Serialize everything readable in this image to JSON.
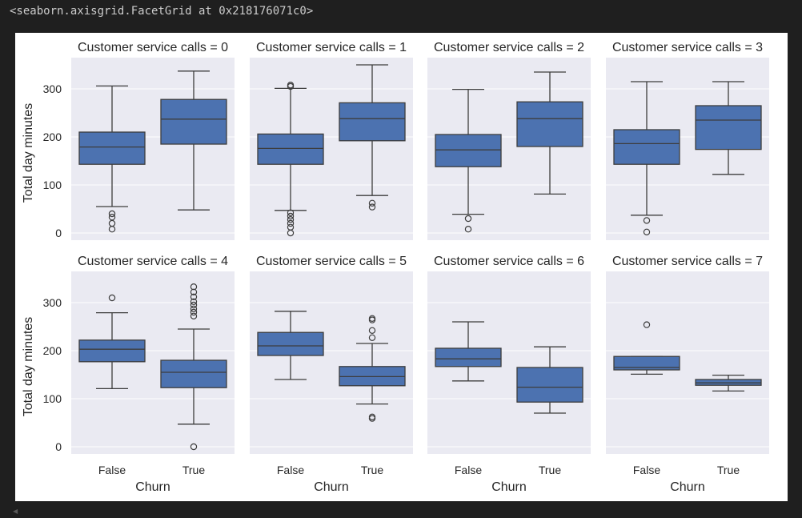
{
  "output_header": "<seaborn.axisgrid.FacetGrid at 0x218176071c0>",
  "scroll_arrow_icon": "triangle-left",
  "colors": {
    "page_bg": "#1f1f1f",
    "figure_bg": "#ffffff",
    "axes_bg": "#eaeaf2",
    "grid": "#ffffff",
    "box_fill": "#4c72b0",
    "line": "#3d3d3d",
    "text": "#262626"
  },
  "chart_data": {
    "type": "box",
    "ylabel": "Total day minutes",
    "xlabel": "Churn",
    "ylim": [
      -15,
      365
    ],
    "yticks": [
      0,
      100,
      200,
      300
    ],
    "categories": [
      "False",
      "True"
    ],
    "grid": true,
    "facets": [
      {
        "title": "Customer service calls = 0",
        "boxes": [
          {
            "category": "False",
            "whisker_low": 55,
            "q1": 143,
            "median": 179,
            "q3": 210,
            "whisker_high": 306,
            "outliers": [
              8,
              20,
              33,
              40
            ]
          },
          {
            "category": "True",
            "whisker_low": 48,
            "q1": 185,
            "median": 237,
            "q3": 278,
            "whisker_high": 337,
            "outliers": []
          }
        ]
      },
      {
        "title": "Customer service calls = 1",
        "boxes": [
          {
            "category": "False",
            "whisker_low": 47,
            "q1": 143,
            "median": 176,
            "q3": 206,
            "whisker_high": 301,
            "outliers": [
              0,
              12,
              20,
              28,
              35,
              42,
              305,
              308
            ]
          },
          {
            "category": "True",
            "whisker_low": 78,
            "q1": 192,
            "median": 238,
            "q3": 271,
            "whisker_high": 350,
            "outliers": [
              54,
              62
            ]
          }
        ]
      },
      {
        "title": "Customer service calls = 2",
        "boxes": [
          {
            "category": "False",
            "whisker_low": 39,
            "q1": 138,
            "median": 173,
            "q3": 205,
            "whisker_high": 299,
            "outliers": [
              8,
              30
            ]
          },
          {
            "category": "True",
            "whisker_low": 81,
            "q1": 180,
            "median": 238,
            "q3": 273,
            "whisker_high": 335,
            "outliers": []
          }
        ]
      },
      {
        "title": "Customer service calls = 3",
        "boxes": [
          {
            "category": "False",
            "whisker_low": 37,
            "q1": 143,
            "median": 186,
            "q3": 215,
            "whisker_high": 315,
            "outliers": [
              2,
              26
            ]
          },
          {
            "category": "True",
            "whisker_low": 122,
            "q1": 174,
            "median": 235,
            "q3": 265,
            "whisker_high": 315,
            "outliers": []
          }
        ]
      },
      {
        "title": "Customer service calls = 4",
        "boxes": [
          {
            "category": "False",
            "whisker_low": 121,
            "q1": 177,
            "median": 203,
            "q3": 222,
            "whisker_high": 279,
            "outliers": [
              310
            ]
          },
          {
            "category": "True",
            "whisker_low": 47,
            "q1": 123,
            "median": 155,
            "q3": 180,
            "whisker_high": 245,
            "outliers": [
              0,
              272,
              280,
              287,
              295,
              302,
              312,
              322,
              333
            ]
          }
        ]
      },
      {
        "title": "Customer service calls = 5",
        "boxes": [
          {
            "category": "False",
            "whisker_low": 140,
            "q1": 190,
            "median": 210,
            "q3": 238,
            "whisker_high": 282,
            "outliers": []
          },
          {
            "category": "True",
            "whisker_low": 89,
            "q1": 127,
            "median": 146,
            "q3": 167,
            "whisker_high": 215,
            "outliers": [
              59,
              62,
              227,
              242,
              264,
              267
            ]
          }
        ]
      },
      {
        "title": "Customer service calls = 6",
        "boxes": [
          {
            "category": "False",
            "whisker_low": 137,
            "q1": 167,
            "median": 183,
            "q3": 205,
            "whisker_high": 260,
            "outliers": []
          },
          {
            "category": "True",
            "whisker_low": 70,
            "q1": 93,
            "median": 124,
            "q3": 165,
            "whisker_high": 208,
            "outliers": []
          }
        ]
      },
      {
        "title": "Customer service calls = 7",
        "boxes": [
          {
            "category": "False",
            "whisker_low": 151,
            "q1": 160,
            "median": 165,
            "q3": 188,
            "whisker_high": 188,
            "outliers": [
              254
            ]
          },
          {
            "category": "True",
            "whisker_low": 116,
            "q1": 128,
            "median": 133,
            "q3": 140,
            "whisker_high": 149,
            "outliers": []
          }
        ]
      }
    ]
  }
}
